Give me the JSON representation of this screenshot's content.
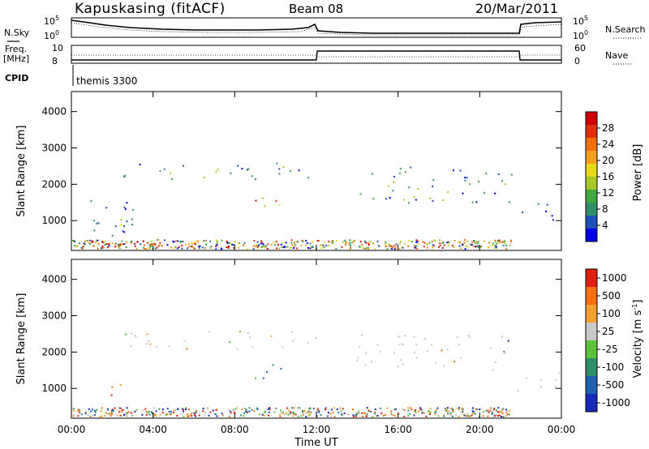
{
  "header": {
    "station": "Kapuskasing (fitACF)",
    "beam": "Beam 08",
    "date": "20/Mar/2011"
  },
  "summary": {
    "nsky_label": "N.Sky",
    "nsearch_label": "N.Search",
    "freq_label_1": "Freq.",
    "freq_label_2": "[MHz]",
    "nave_label": "Nave",
    "cpid_label": "CPID",
    "cpid_value": "themis 3300",
    "noise_tick_hi": "10^5",
    "noise_tick_lo": "10^0",
    "freq_tick_hi": "10",
    "freq_tick_lo": "8",
    "nave_tick_hi": "60",
    "nave_tick_lo": "0"
  },
  "chart_data": [
    {
      "type": "heatmap",
      "name": "power-panel",
      "xlabel": "",
      "ylabel": "Slant Range [km]",
      "xlim": [
        0,
        24
      ],
      "ylim": [
        180,
        4550
      ],
      "x_ticks_hours": [
        0,
        4,
        8,
        12,
        16,
        20,
        24
      ],
      "y_ticks": [
        1000,
        2000,
        3000,
        4000
      ],
      "colorbar": {
        "label": "Power [dB]",
        "ticks": [
          "4",
          "8",
          "12",
          "16",
          "20",
          "24",
          "28"
        ],
        "colors": [
          "#0000e6",
          "#1f4fb8",
          "#2f8f6a",
          "#3fa83f",
          "#a8c82a",
          "#e8d81a",
          "#f5a020",
          "#f07010",
          "#e03010",
          "#d00000"
        ]
      },
      "features": [
        {
          "t0": 0.5,
          "t1": 3.0,
          "r0": 500,
          "r1": 1700,
          "level": "low"
        },
        {
          "t0": 2.0,
          "t1": 3.0,
          "r0": 700,
          "r1": 1200,
          "level": "high"
        },
        {
          "t0": 2.5,
          "t1": 12.0,
          "r0": 2100,
          "r1": 2600,
          "level": "medium"
        },
        {
          "t0": 8.8,
          "t1": 10.5,
          "r0": 1300,
          "r1": 1800,
          "level": "high"
        },
        {
          "t0": 13.8,
          "t1": 21.6,
          "r0": 1500,
          "r1": 2500,
          "level": "medium"
        },
        {
          "t0": 21.8,
          "t1": 24.0,
          "r0": 900,
          "r1": 1500,
          "level": "low"
        }
      ]
    },
    {
      "type": "heatmap",
      "name": "velocity-panel",
      "xlabel": "Time UT",
      "ylabel": "Slant Range [km]",
      "xlim": [
        0,
        24
      ],
      "ylim": [
        180,
        4550
      ],
      "x_ticks_hours": [
        0,
        4,
        8,
        12,
        16,
        20,
        24
      ],
      "x_tick_labels": [
        "00:00",
        "04:00",
        "08:00",
        "12:00",
        "16:00",
        "20:00",
        "00:00"
      ],
      "y_ticks": [
        1000,
        2000,
        3000,
        4000
      ],
      "colorbar": {
        "label": "Velocity [m s^-1]",
        "ticks": [
          "1000",
          "500",
          "100",
          "25",
          "-25",
          "-100",
          "-500",
          "-1000"
        ],
        "colors": [
          "#1828b8",
          "#2060b0",
          "#2f8f6a",
          "#5cc23a",
          "#c8c8c8",
          "#f5a030",
          "#f57010",
          "#e02010"
        ]
      },
      "features": [
        {
          "t0": 2.5,
          "t1": 12.0,
          "r0": 2100,
          "r1": 2600,
          "vel": "ground"
        },
        {
          "t0": 1.8,
          "t1": 3.0,
          "r0": 700,
          "r1": 1200,
          "vel": "away-strong"
        },
        {
          "t0": 8.8,
          "t1": 10.5,
          "r0": 1300,
          "r1": 1800,
          "vel": "toward"
        },
        {
          "t0": 13.8,
          "t1": 21.6,
          "r0": 1500,
          "r1": 2500,
          "vel": "ground"
        },
        {
          "t0": 21.8,
          "t1": 24.0,
          "r0": 900,
          "r1": 1500,
          "vel": "ground"
        }
      ]
    }
  ]
}
